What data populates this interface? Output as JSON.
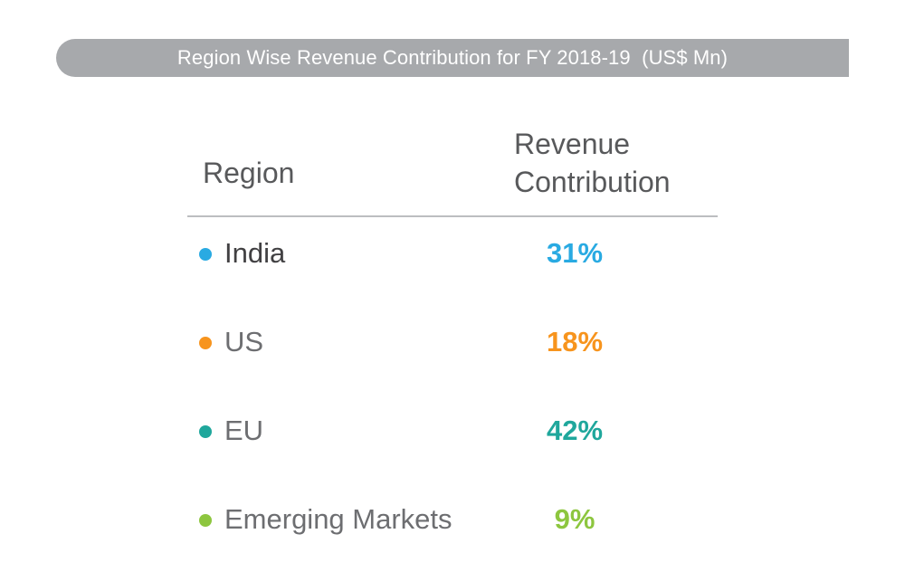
{
  "banner": {
    "title": "Region Wise Revenue Contribution for FY 2018-19  (US$ Mn)"
  },
  "table": {
    "headers": {
      "region": "Region",
      "revenue": "Revenue\nContribution"
    }
  },
  "chart_data": {
    "type": "table",
    "title": "Region Wise Revenue Contribution for FY 2018-19  (US$ Mn)",
    "columns": [
      "Region",
      "Revenue Contribution"
    ],
    "rows": [
      {
        "region": "India",
        "value": 31,
        "display": "31%",
        "color": "#29aae2",
        "emphasis": true
      },
      {
        "region": "US",
        "value": 18,
        "display": "18%",
        "color": "#f7941d",
        "emphasis": false
      },
      {
        "region": "EU",
        "value": 42,
        "display": "42%",
        "color": "#1fa79c",
        "emphasis": false
      },
      {
        "region": "Emerging Markets",
        "value": 9,
        "display": "9%",
        "color": "#8dc63f",
        "emphasis": false
      }
    ]
  }
}
